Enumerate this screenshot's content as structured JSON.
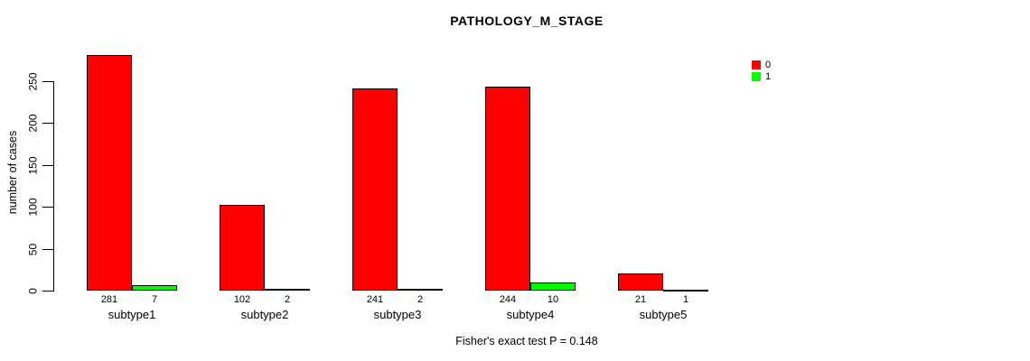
{
  "chart_data": {
    "type": "bar",
    "title": "PATHOLOGY_M_STAGE",
    "xlabel": "",
    "ylabel": "number of cases",
    "categories": [
      "subtype1",
      "subtype2",
      "subtype3",
      "subtype4",
      "subtype5"
    ],
    "series": [
      {
        "name": "0",
        "color": "#ff0000",
        "values": [
          281,
          102,
          241,
          244,
          21
        ]
      },
      {
        "name": "1",
        "color": "#00ff00",
        "values": [
          7,
          2,
          2,
          10,
          1
        ]
      }
    ],
    "yticks": [
      0,
      50,
      100,
      150,
      200,
      250
    ],
    "ylim": [
      0,
      290
    ],
    "grid": false,
    "legend_position": "top-right",
    "bar_value_labels": true,
    "annotation": "Fisher's exact test P = 0.148"
  }
}
